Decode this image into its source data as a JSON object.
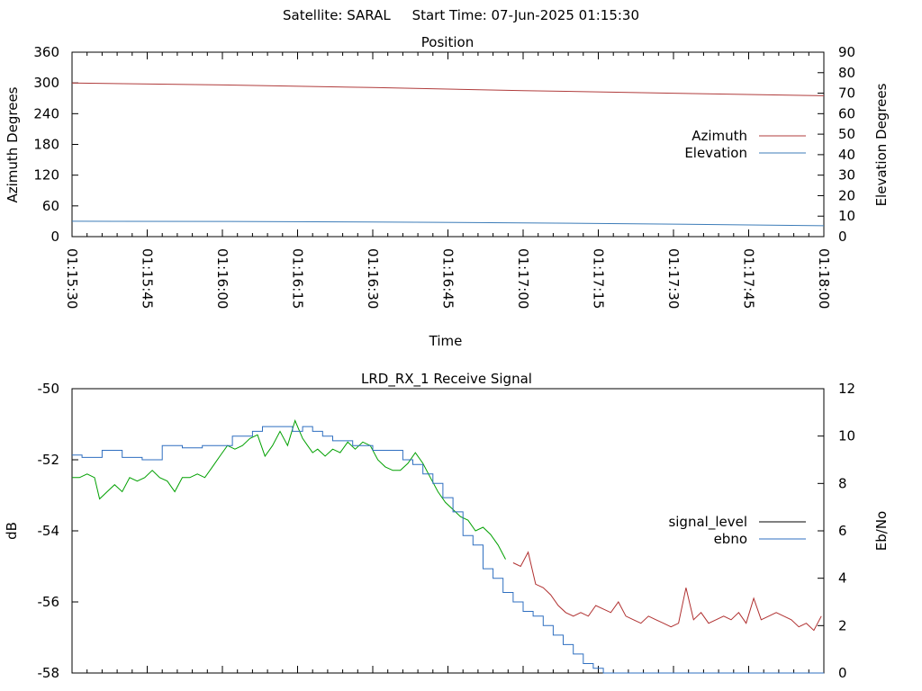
{
  "header": {
    "title": "Satellite: SARAL     Start Time: 07-Jun-2025 01:15:30"
  },
  "colors": {
    "azimuth": "#b03c3c",
    "elevation": "#3c7cb8",
    "signal_green": "#00a000",
    "signal_red": "#b03030",
    "ebno": "#2f6fc0",
    "legend_signal": "#000000",
    "axis": "#000000"
  },
  "chart_data": [
    {
      "type": "line",
      "title": "Position",
      "xlabel": "Time",
      "ylabel": "Azimuth Degrees",
      "y2label": "Elevation Degrees",
      "ylim": [
        0,
        360
      ],
      "y2lim": [
        0,
        90
      ],
      "yticks": [
        "0",
        "60",
        "120",
        "180",
        "240",
        "300",
        "360"
      ],
      "y2ticks": [
        "0",
        "10",
        "20",
        "30",
        "40",
        "50",
        "60",
        "70",
        "80",
        "90"
      ],
      "xticks": [
        "01:15:30",
        "01:15:45",
        "01:16:00",
        "01:16:15",
        "01:16:30",
        "01:16:45",
        "01:17:00",
        "01:17:15",
        "01:17:30",
        "01:17:45",
        "01:18:00"
      ],
      "xlim_seconds": [
        0,
        150
      ],
      "legend_position": "right",
      "series": [
        {
          "name": "Azimuth",
          "axis": "left",
          "x": [
            0,
            30,
            60,
            90,
            120,
            150
          ],
          "values": [
            300,
            296,
            291,
            285,
            280,
            275
          ]
        },
        {
          "name": "Elevation",
          "axis": "right",
          "x": [
            0,
            30,
            60,
            90,
            120,
            150
          ],
          "values": [
            7.5,
            7.4,
            7.1,
            6.7,
            6.1,
            5.3
          ]
        }
      ]
    },
    {
      "type": "line",
      "title": "LRD_RX_1 Receive Signal",
      "ylabel": "dB",
      "y2label": "Eb/No",
      "ylim": [
        -58,
        -50
      ],
      "y2lim": [
        0,
        12
      ],
      "yticks": [
        "-58",
        "-56",
        "-54",
        "-52",
        "-50"
      ],
      "y2ticks": [
        "0",
        "2",
        "4",
        "6",
        "8",
        "10",
        "12"
      ],
      "xlim_seconds": [
        0,
        150
      ],
      "legend_position": "right",
      "series": [
        {
          "name": "signal_level",
          "axis": "left",
          "x": [
            0,
            1.5,
            3,
            4.5,
            5.5,
            7,
            8.5,
            10,
            11.5,
            13,
            14.5,
            16,
            17.5,
            19,
            20.5,
            22,
            23.5,
            25,
            26.5,
            28,
            29.5,
            31,
            32.5,
            34,
            35.5,
            37,
            38.5,
            40,
            41.5,
            43,
            44.5,
            46,
            47,
            48,
            49,
            50.5,
            52,
            53.5,
            55,
            56.5,
            58,
            59.5,
            61,
            62.5,
            64,
            65.5,
            67,
            68.5,
            70,
            71.5,
            73,
            74.5,
            76,
            77.5,
            79,
            80.5,
            82,
            83.5,
            85,
            86.5,
            88,
            89.5,
            91,
            92.5,
            94,
            95.5,
            97,
            98.5,
            100,
            101.5,
            103,
            104.5,
            106,
            107.5,
            109,
            110.5,
            112,
            113.5,
            115,
            116.5,
            118,
            119.5,
            121,
            122.5,
            124,
            125.5,
            127,
            128.5,
            130,
            131.5,
            133,
            134.5,
            136,
            137.5,
            139,
            140.5,
            142,
            143.5,
            145,
            146.5,
            148,
            149.5
          ],
          "values": [
            -52.5,
            -52.5,
            -52.4,
            -52.5,
            -53.1,
            -52.9,
            -52.7,
            -52.9,
            -52.5,
            -52.6,
            -52.5,
            -52.3,
            -52.5,
            -52.6,
            -52.9,
            -52.5,
            -52.5,
            -52.4,
            -52.5,
            -52.2,
            -51.9,
            -51.6,
            -51.7,
            -51.6,
            -51.4,
            -51.3,
            -51.9,
            -51.6,
            -51.2,
            -51.6,
            -50.9,
            -51.4,
            -51.6,
            -51.8,
            -51.7,
            -51.9,
            -51.7,
            -51.8,
            -51.5,
            -51.7,
            -51.5,
            -51.6,
            -52,
            -52.2,
            -52.3,
            -52.3,
            -52.1,
            -51.8,
            -52.1,
            -52.5,
            -52.9,
            -53.2,
            -53.4,
            -53.6,
            -53.7,
            -54,
            -53.9,
            -54.1,
            -54.4,
            -54.8,
            -54.9,
            -55,
            -54.6,
            -55.5,
            -55.6,
            -55.8,
            -56.1,
            -56.3,
            -56.4,
            -56.3,
            -56.4,
            -56.1,
            -56.2,
            -56.3,
            -56.0,
            -56.4,
            -56.5,
            -56.6,
            -56.4,
            -56.5,
            -56.6,
            -56.7,
            -56.6,
            -55.6,
            -56.5,
            -56.3,
            -56.6,
            -56.5,
            -56.4,
            -56.5,
            -56.3,
            -56.6,
            -55.9,
            -56.5,
            -56.4,
            -56.3,
            -56.4,
            -56.5,
            -56.7,
            -56.6,
            -56.8,
            -56.4
          ]
        },
        {
          "name": "ebno",
          "axis": "right",
          "x": [
            0,
            2,
            4,
            6,
            8,
            10,
            12,
            14,
            16,
            18,
            20,
            22,
            24,
            26,
            28,
            30,
            32,
            34,
            36,
            38,
            40,
            42,
            44,
            46,
            48,
            50,
            52,
            54,
            56,
            58,
            60,
            62,
            64,
            66,
            68,
            70,
            72,
            74,
            76,
            78,
            80,
            82,
            84,
            86,
            88,
            90,
            92,
            94,
            96,
            98,
            100,
            102,
            104,
            106,
            108,
            110,
            112,
            114,
            116,
            118,
            120,
            122,
            124,
            126,
            128,
            130,
            132,
            134,
            136,
            138,
            140,
            142,
            144,
            146,
            148,
            150
          ],
          "values": [
            9.2,
            9.1,
            9.1,
            9.4,
            9.4,
            9.1,
            9.1,
            9.0,
            9.0,
            9.6,
            9.6,
            9.5,
            9.5,
            9.6,
            9.6,
            9.6,
            10.0,
            10.0,
            10.2,
            10.4,
            10.4,
            10.4,
            10.2,
            10.4,
            10.2,
            10.0,
            9.8,
            9.8,
            9.6,
            9.6,
            9.4,
            9.4,
            9.4,
            9.0,
            8.8,
            8.4,
            8.0,
            7.4,
            6.8,
            5.8,
            5.4,
            4.4,
            4.0,
            3.4,
            3.0,
            2.6,
            2.4,
            2.0,
            1.6,
            1.2,
            0.8,
            0.4,
            0.2,
            0.0,
            0.0,
            0.0,
            0.0,
            0.0,
            0.0,
            0.0,
            0.0,
            0.0,
            0.0,
            0.0,
            0.0,
            0.0,
            0.0,
            0.0,
            0.0,
            0.0,
            0.0,
            0.0,
            0.0,
            0.0,
            0.0,
            0.0
          ]
        }
      ]
    }
  ]
}
